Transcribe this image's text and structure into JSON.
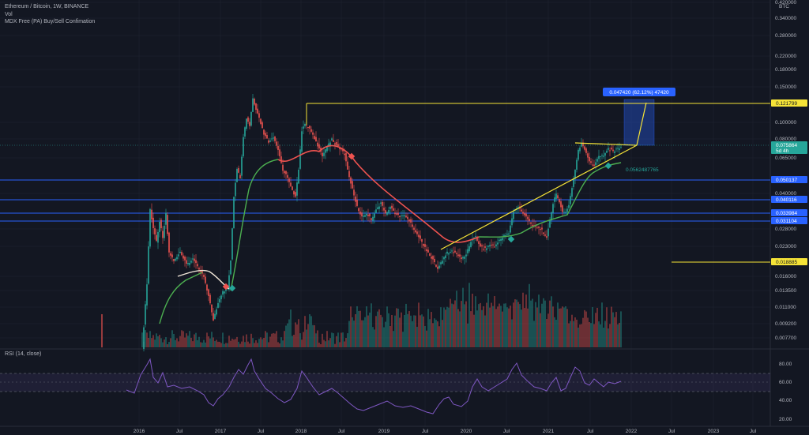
{
  "header": {
    "symbol_line": "Ethereum / Bitcoin, 1W, BINANCE",
    "indicator_1": "Vol",
    "indicator_2": "MDX Free (PA) Buy/Sell Confimation"
  },
  "price_axis": {
    "currency": "BTC",
    "ticks": [
      "0.420000",
      "0.340000",
      "0.280000",
      "0.220000",
      "0.180000",
      "0.150000",
      "0.100000",
      "0.080000",
      "0.065000",
      "0.040000",
      "0.028000",
      "0.023000",
      "0.016000",
      "0.013500",
      "0.011000",
      "0.009200",
      "0.007700"
    ]
  },
  "price_tags": [
    {
      "label": "0.121799",
      "kind": "yellow-line",
      "color": "#f5e337"
    },
    {
      "label": "0.075864",
      "sub": "5d 4h",
      "kind": "current",
      "color": "#26a69a"
    },
    {
      "label": "0.050137",
      "kind": "blue-line",
      "color": "#2962ff"
    },
    {
      "label": "0.040116",
      "kind": "blue-line",
      "color": "#2962ff"
    },
    {
      "label": "0.033984",
      "kind": "blue-line",
      "color": "#2962ff"
    },
    {
      "label": "0.031104",
      "kind": "blue-line",
      "color": "#2962ff"
    },
    {
      "label": "0.018885",
      "kind": "yellow-line",
      "color": "#f5e337"
    }
  ],
  "measure_label": "0.047420 (62.12%) 47420",
  "annotation_value": "0.0562487765",
  "rsi": {
    "title": "RSI (14, close)",
    "ticks": [
      "80.00",
      "60.00",
      "40.00",
      "20.00"
    ]
  },
  "time_axis": [
    "2016",
    "Jul",
    "2017",
    "Jul",
    "2018",
    "Jul",
    "2019",
    "Jul",
    "2020",
    "Jul",
    "2021",
    "Jul",
    "2022",
    "Jul",
    "2023",
    "Jul"
  ],
  "colors": {
    "background": "#131722",
    "up": "#26a69a",
    "down": "#ef5350",
    "rsi_line": "#7e57c2",
    "ma_red": "#ef5350",
    "ma_green": "#4caf50",
    "trendline": "#f5e337",
    "level_line": "#2962ff"
  }
}
